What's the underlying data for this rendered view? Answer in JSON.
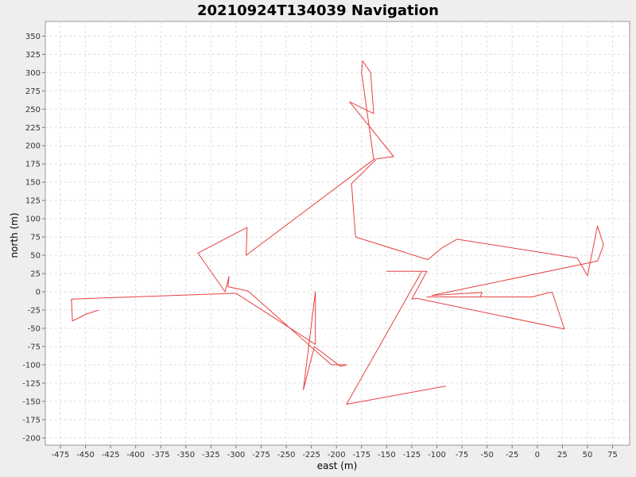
{
  "chart_data": {
    "type": "line",
    "title": "20210924T134039 Navigation",
    "xlabel": "east (m)",
    "ylabel": "north (m)",
    "xlim": [
      -490,
      92
    ],
    "ylim": [
      -210,
      370
    ],
    "xticks": [
      -475,
      -450,
      -425,
      -400,
      -375,
      -350,
      -325,
      -300,
      -275,
      -250,
      -225,
      -200,
      -175,
      -150,
      -125,
      -100,
      -75,
      -50,
      -25,
      0,
      25,
      50,
      75
    ],
    "yticks": [
      -200,
      -175,
      -150,
      -125,
      -100,
      -75,
      -50,
      -25,
      0,
      25,
      50,
      75,
      100,
      125,
      150,
      175,
      200,
      225,
      250,
      275,
      300,
      325,
      350
    ],
    "grid": true,
    "legend": "none",
    "line_color": "#e84040",
    "series": [
      {
        "x": [
          -437,
          -450,
          -463,
          -464,
          -300,
          -221,
          -221,
          -233,
          -222,
          -196,
          -190,
          -205,
          -288,
          -308,
          -307,
          -311,
          -338,
          -289,
          -290,
          -162,
          -163,
          -175,
          -174,
          -166,
          -163,
          -187,
          -143,
          -160,
          -185,
          -181,
          -109,
          -95,
          -80,
          40,
          50,
          60,
          66,
          60,
          -105,
          -55,
          -57,
          -100,
          -95,
          -96,
          -58,
          -60,
          -100,
          -104,
          -98,
          -82,
          -58,
          -64,
          -56,
          -53,
          -80,
          -110,
          -110,
          -35,
          -5,
          12,
          15,
          27,
          -120,
          -125,
          -110,
          -124,
          -120,
          -150,
          -128,
          -130,
          -144,
          -128,
          -115,
          -190,
          -91
        ],
        "y": [
          -25,
          -31,
          -40,
          -10,
          -2,
          -72,
          0,
          -134,
          -75,
          -102,
          -100,
          -100,
          1,
          7,
          21,
          0,
          53,
          88,
          50,
          182,
          182,
          300,
          316,
          300,
          244,
          260,
          185,
          182,
          148,
          75,
          44,
          60,
          72,
          46,
          22,
          90,
          64,
          42,
          -5,
          -1,
          -7,
          -7,
          -7,
          -7,
          -7,
          -7,
          -7,
          -7,
          -7,
          -7,
          -7,
          -7,
          -7,
          -7,
          -7,
          -7,
          -7,
          -7,
          -7,
          -1,
          -1,
          -51,
          -9,
          -10,
          28,
          28,
          28,
          28,
          28,
          28,
          28,
          28,
          28,
          -154,
          -129
        ]
      }
    ]
  }
}
